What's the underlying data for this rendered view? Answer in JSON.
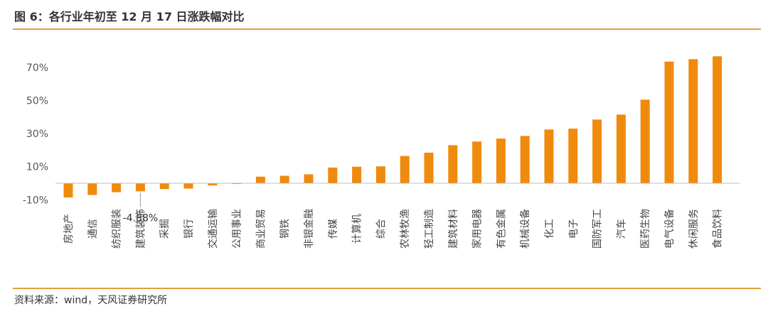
{
  "header": {
    "title": "图 6：各行业年初至 12 月 17 日涨跌幅对比"
  },
  "footer": {
    "source": "资料来源：wind，天风证券研究所"
  },
  "colors": {
    "bar": "#F08A0C",
    "rule": "#E0A040",
    "axis": "#BFBFBF"
  },
  "chart_data": {
    "type": "bar",
    "title": "",
    "xlabel": "",
    "ylabel": "",
    "ylim": [
      -15,
      80
    ],
    "yticks": [
      70,
      50,
      30,
      10,
      -10
    ],
    "ytick_labels": [
      "70%",
      "50%",
      "30%",
      "10%",
      "-10%"
    ],
    "grid": false,
    "categories": [
      "房地产",
      "通信",
      "纺织服装",
      "建筑装饰",
      "采掘",
      "银行",
      "交通运输",
      "公用事业",
      "商业贸易",
      "钢铁",
      "非银金融",
      "传媒",
      "计算机",
      "综合",
      "农林牧渔",
      "轻工制造",
      "建筑材料",
      "家用电器",
      "有色金属",
      "机械设备",
      "化工",
      "电子",
      "国防军工",
      "汽车",
      "医药生物",
      "电气设备",
      "休闲服务",
      "食品饮料"
    ],
    "values": [
      -8.6,
      -7.1,
      -5.4,
      -4.88,
      -3.5,
      -3.2,
      -1.3,
      -0.4,
      4.0,
      4.5,
      5.4,
      9.5,
      10.0,
      10.2,
      16.5,
      18.5,
      23.0,
      25.2,
      27.0,
      28.6,
      32.5,
      33.0,
      38.5,
      41.5,
      50.5,
      73.5,
      75.0,
      76.7
    ],
    "annotation": {
      "category": "建筑装饰",
      "text": "-4.88%"
    }
  }
}
